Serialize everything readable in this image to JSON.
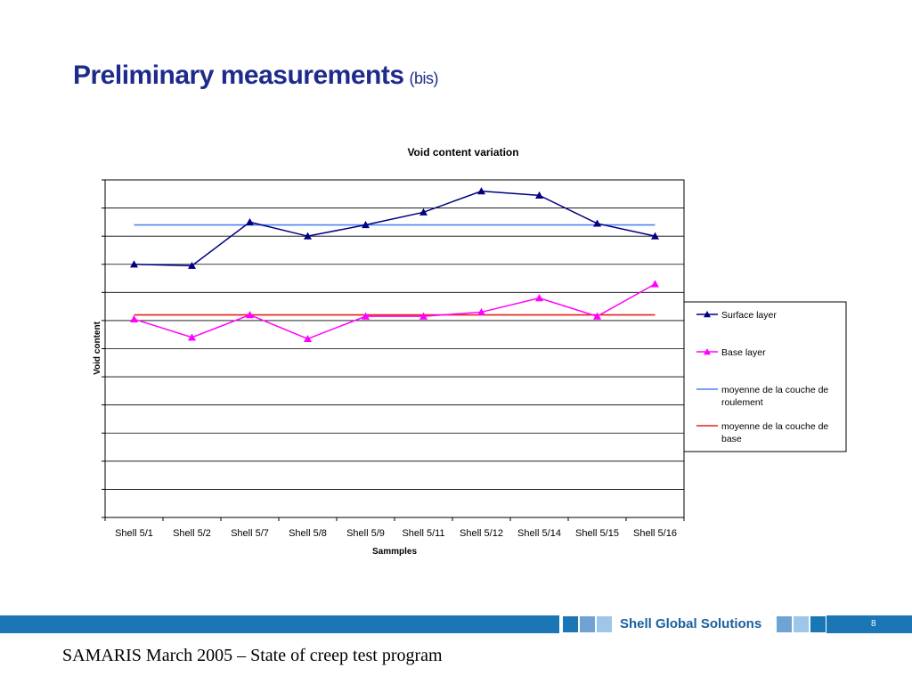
{
  "slide": {
    "title": "Preliminary measurements",
    "title_suffix": "(bis)",
    "footer_text": "SAMARIS March 2005 – State of creep test program",
    "brand": "Shell Global Solutions",
    "page_number": "8"
  },
  "colors": {
    "title": "#1f2b8a",
    "footer_band": "#1a76b5",
    "surface_layer": "#000080",
    "base_layer": "#ff00ff",
    "mean_surface": "#4f81f0",
    "mean_base": "#e8211c"
  },
  "chart_data": {
    "type": "line",
    "title": "Void content variation",
    "xlabel": "Sammples",
    "ylabel": "Void content",
    "categories": [
      "Shell 5/1",
      "Shell 5/2",
      "Shell 5/7",
      "Shell 5/8",
      "Shell 5/9",
      "Shell 5/11",
      "Shell 5/12",
      "Shell 5/14",
      "Shell 5/15",
      "Shell 5/16"
    ],
    "ylim": [
      0,
      12
    ],
    "grid": true,
    "legend_position": "right",
    "series": [
      {
        "name": "Surface layer",
        "values": [
          9.0,
          8.95,
          10.5,
          10.0,
          10.4,
          10.85,
          11.6,
          11.45,
          10.45,
          10.0
        ],
        "color": "#000080",
        "marker": "triangle"
      },
      {
        "name": "Base layer",
        "values": [
          7.05,
          6.4,
          7.2,
          6.35,
          7.15,
          7.15,
          7.3,
          7.8,
          7.15,
          8.3
        ],
        "color": "#ff00ff",
        "marker": "triangle"
      },
      {
        "name": "moyenne de la couche de roulement",
        "values": [
          10.4,
          10.4,
          10.4,
          10.4,
          10.4,
          10.4,
          10.4,
          10.4,
          10.4,
          10.4
        ],
        "color": "#4f81f0",
        "marker": "none"
      },
      {
        "name": "moyenne de la couche de base",
        "values": [
          7.2,
          7.2,
          7.2,
          7.2,
          7.2,
          7.2,
          7.2,
          7.2,
          7.2,
          7.2
        ],
        "color": "#e8211c",
        "marker": "none"
      }
    ]
  }
}
